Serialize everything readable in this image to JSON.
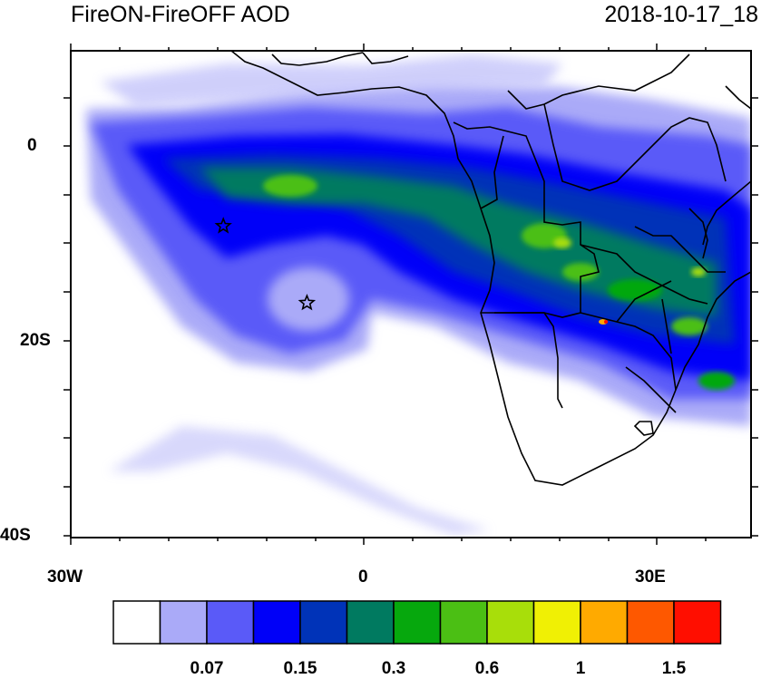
{
  "header": {
    "title": "FireON-FireOFF AOD",
    "datetime": "2018-10-17_18"
  },
  "map": {
    "lat_labels": [
      "0",
      "20S",
      "40S"
    ],
    "lon_labels": [
      "30W",
      "0",
      "30E"
    ],
    "markers": [
      {
        "type": "star",
        "lon": -14.3,
        "lat": -8.0
      },
      {
        "type": "star",
        "lon": -5.7,
        "lat": -15.9
      }
    ]
  },
  "colorbar": {
    "colors": [
      "#ffffff",
      "#aaaaf8",
      "#5a5af8",
      "#0000f8",
      "#0033b8",
      "#007a60",
      "#06a80d",
      "#4bbf14",
      "#a8de0a",
      "#f0f004",
      "#ffaa00",
      "#fe5800",
      "#ff0e00"
    ],
    "tick_labels": [
      {
        "after_box": 2,
        "text": "0.07"
      },
      {
        "after_box": 4,
        "text": "0.15"
      },
      {
        "after_box": 6,
        "text": "0.3"
      },
      {
        "after_box": 8,
        "text": "0.6"
      },
      {
        "after_box": 10,
        "text": "1"
      },
      {
        "after_box": 12,
        "text": "1.5"
      }
    ]
  }
}
